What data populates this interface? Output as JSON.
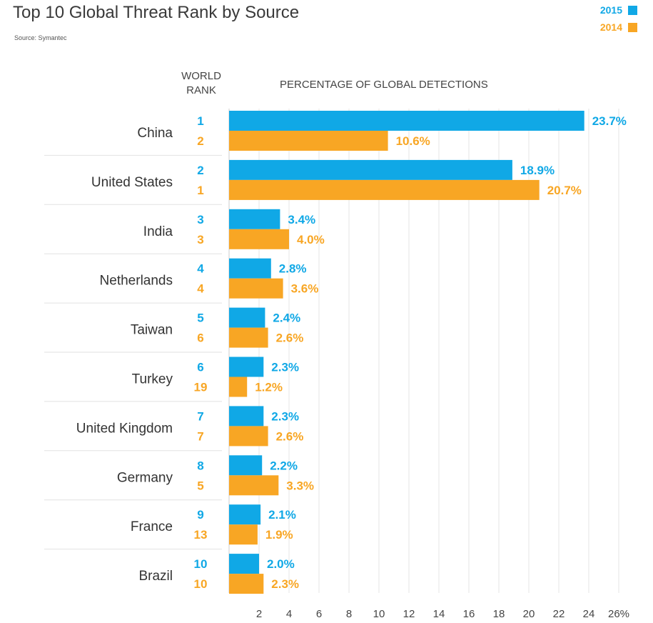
{
  "title": "Top 10 Global Threat Rank by Source",
  "source": "Source: Symantec",
  "legend": [
    {
      "label": "2015",
      "color": "#10a8e6"
    },
    {
      "label": "2014",
      "color": "#f8a624"
    }
  ],
  "rank_header": [
    "WORLD",
    "RANK"
  ],
  "axis_title": "PERCENTAGE OF GLOBAL DETECTIONS",
  "chart_data": {
    "type": "bar",
    "orientation": "horizontal",
    "title": "Top 10 Global Threat Rank by Source",
    "xlabel": "PERCENTAGE OF GLOBAL DETECTIONS",
    "xlim": [
      0,
      26
    ],
    "ticks": [
      "2",
      "4",
      "6",
      "8",
      "10",
      "12",
      "14",
      "16",
      "18",
      "20",
      "22",
      "24",
      "26%"
    ],
    "grid": true,
    "legend_position": "top-right",
    "categories": [
      "China",
      "United States",
      "India",
      "Netherlands",
      "Taiwan",
      "Turkey",
      "United Kingdom",
      "Germany",
      "France",
      "Brazil"
    ],
    "series": [
      {
        "name": "2015",
        "color": "#10a8e6",
        "values": [
          23.7,
          18.9,
          3.4,
          2.8,
          2.4,
          2.3,
          2.3,
          2.2,
          2.1,
          2.0
        ],
        "labels": [
          "23.7%",
          "18.9%",
          "3.4%",
          "2.8%",
          "2.4%",
          "2.3%",
          "2.3%",
          "2.2%",
          "2.1%",
          "2.0%"
        ],
        "ranks": [
          "1",
          "2",
          "3",
          "4",
          "5",
          "6",
          "7",
          "8",
          "9",
          "10"
        ]
      },
      {
        "name": "2014",
        "color": "#f8a624",
        "values": [
          10.6,
          20.7,
          4.0,
          3.6,
          2.6,
          1.2,
          2.6,
          3.3,
          1.9,
          2.3
        ],
        "labels": [
          "10.6%",
          "20.7%",
          "4.0%",
          "3.6%",
          "2.6%",
          "1.2%",
          "2.6%",
          "3.3%",
          "1.9%",
          "2.3%"
        ],
        "ranks": [
          "2",
          "1",
          "3",
          "4",
          "6",
          "19",
          "7",
          "5",
          "13",
          "10"
        ]
      }
    ]
  }
}
